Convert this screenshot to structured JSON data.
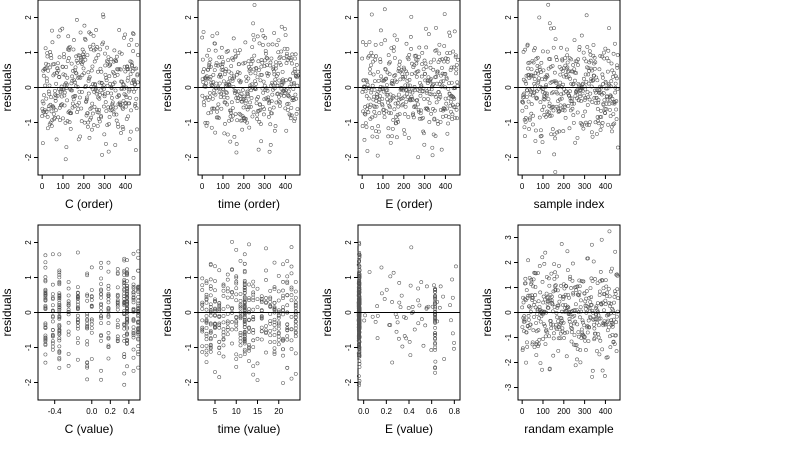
{
  "chart_data": [
    {
      "type": "scatter",
      "xlabel": "C (order)",
      "ylabel": "residuals",
      "xlim": [
        -20,
        470
      ],
      "ylim": [
        -2.5,
        2.5
      ],
      "xticks": [
        {
          "v": 0,
          "t": "0"
        },
        {
          "v": 100,
          "t": "100"
        },
        {
          "v": 200,
          "t": "200"
        },
        {
          "v": 300,
          "t": "300"
        },
        {
          "v": 400,
          "t": "400"
        }
      ],
      "yticks": [
        {
          "v": -2,
          "t": "-2"
        },
        {
          "v": -1,
          "t": "-1"
        },
        {
          "v": 0,
          "t": "0"
        },
        {
          "v": 1,
          "t": "1"
        },
        {
          "v": 2,
          "t": "2"
        }
      ],
      "hline": 0,
      "gen": {
        "n": 420,
        "xkind": "uniform",
        "xmin": 0,
        "xmax": 460,
        "sd": 0.72,
        "seed": 11
      }
    },
    {
      "type": "scatter",
      "xlabel": "time (order)",
      "ylabel": "residuals",
      "xlim": [
        -20,
        470
      ],
      "ylim": [
        -2.5,
        2.5
      ],
      "xticks": [
        {
          "v": 0,
          "t": "0"
        },
        {
          "v": 100,
          "t": "100"
        },
        {
          "v": 200,
          "t": "200"
        },
        {
          "v": 300,
          "t": "300"
        },
        {
          "v": 400,
          "t": "400"
        }
      ],
      "yticks": [
        {
          "v": -2,
          "t": "-2"
        },
        {
          "v": -1,
          "t": "-1"
        },
        {
          "v": 0,
          "t": "0"
        },
        {
          "v": 1,
          "t": "1"
        },
        {
          "v": 2,
          "t": "2"
        }
      ],
      "hline": 0,
      "gen": {
        "n": 420,
        "xkind": "uniform",
        "xmin": 0,
        "xmax": 460,
        "sd": 0.72,
        "seed": 23
      }
    },
    {
      "type": "scatter",
      "xlabel": "E (order)",
      "ylabel": "residuals",
      "xlim": [
        -20,
        470
      ],
      "ylim": [
        -2.5,
        2.5
      ],
      "xticks": [
        {
          "v": 0,
          "t": "0"
        },
        {
          "v": 100,
          "t": "100"
        },
        {
          "v": 200,
          "t": "200"
        },
        {
          "v": 300,
          "t": "300"
        },
        {
          "v": 400,
          "t": "400"
        }
      ],
      "yticks": [
        {
          "v": -2,
          "t": "-2"
        },
        {
          "v": -1,
          "t": "-1"
        },
        {
          "v": 0,
          "t": "0"
        },
        {
          "v": 1,
          "t": "1"
        },
        {
          "v": 2,
          "t": "2"
        }
      ],
      "hline": 0,
      "gen": {
        "n": 420,
        "xkind": "uniform",
        "xmin": 0,
        "xmax": 460,
        "sd": 0.72,
        "seed": 37
      }
    },
    {
      "type": "scatter",
      "xlabel": "sample index",
      "ylabel": "residuals",
      "xlim": [
        -20,
        470
      ],
      "ylim": [
        -2.5,
        2.5
      ],
      "xticks": [
        {
          "v": 0,
          "t": "0"
        },
        {
          "v": 100,
          "t": "100"
        },
        {
          "v": 200,
          "t": "200"
        },
        {
          "v": 300,
          "t": "300"
        },
        {
          "v": 400,
          "t": "400"
        }
      ],
      "yticks": [
        {
          "v": -2,
          "t": "-2"
        },
        {
          "v": -1,
          "t": "-1"
        },
        {
          "v": 0,
          "t": "0"
        },
        {
          "v": 1,
          "t": "1"
        },
        {
          "v": 2,
          "t": "2"
        }
      ],
      "hline": 0,
      "gen": {
        "n": 420,
        "xkind": "uniform",
        "xmin": 0,
        "xmax": 460,
        "sd": 0.72,
        "seed": 41
      }
    },
    {
      "type": "scatter",
      "xlabel": "C (value)",
      "ylabel": "residuals",
      "xlim": [
        -0.58,
        0.52
      ],
      "ylim": [
        -2.5,
        2.5
      ],
      "xticks": [
        {
          "v": -0.4,
          "t": "-0.4"
        },
        {
          "v": 0.0,
          "t": "0.0"
        },
        {
          "v": 0.2,
          "t": "0.2"
        },
        {
          "v": 0.4,
          "t": "0.4"
        }
      ],
      "yticks": [
        {
          "v": -2,
          "t": "-2"
        },
        {
          "v": -1,
          "t": "-1"
        },
        {
          "v": 0,
          "t": "0"
        },
        {
          "v": 1,
          "t": "1"
        },
        {
          "v": 2,
          "t": "2"
        }
      ],
      "hline": 0,
      "gen": {
        "n": 420,
        "xkind": "discrete",
        "levels": [
          -0.5,
          -0.42,
          -0.35,
          -0.25,
          -0.15,
          -0.05,
          0.0,
          0.1,
          0.18,
          0.28,
          0.35,
          0.38,
          0.45,
          0.5
        ],
        "weights": [
          3,
          3,
          4,
          2,
          2,
          2,
          2,
          2,
          2,
          2,
          5,
          6,
          3,
          4
        ],
        "sd": 0.72,
        "seed": 53
      }
    },
    {
      "type": "scatter",
      "xlabel": "time (value)",
      "ylabel": "residuals",
      "xlim": [
        1,
        25
      ],
      "ylim": [
        -2.5,
        2.5
      ],
      "xticks": [
        {
          "v": 5,
          "t": "5"
        },
        {
          "v": 10,
          "t": "10"
        },
        {
          "v": 15,
          "t": "15"
        },
        {
          "v": 20,
          "t": "20"
        }
      ],
      "yticks": [
        {
          "v": -2,
          "t": "-2"
        },
        {
          "v": -1,
          "t": "-1"
        },
        {
          "v": 0,
          "t": "0"
        },
        {
          "v": 1,
          "t": "1"
        },
        {
          "v": 2,
          "t": "2"
        }
      ],
      "hline": 0,
      "gen": {
        "n": 420,
        "xkind": "integers",
        "xmin": 2,
        "xmax": 24,
        "heavy": [
          12
        ],
        "sd": 0.72,
        "seed": 67
      }
    },
    {
      "type": "scatter",
      "xlabel": "E (value)",
      "ylabel": "residuals",
      "xlim": [
        -0.05,
        0.85
      ],
      "ylim": [
        -2.5,
        2.5
      ],
      "xticks": [
        {
          "v": 0.0,
          "t": "0.0"
        },
        {
          "v": 0.2,
          "t": "0.2"
        },
        {
          "v": 0.4,
          "t": "0.4"
        },
        {
          "v": 0.6,
          "t": "0.6"
        },
        {
          "v": 0.8,
          "t": "0.8"
        }
      ],
      "yticks": [
        {
          "v": -2,
          "t": "-2"
        },
        {
          "v": -1,
          "t": "-1"
        },
        {
          "v": 0,
          "t": "0"
        },
        {
          "v": 1,
          "t": "1"
        },
        {
          "v": 2,
          "t": "2"
        }
      ],
      "hline": 0,
      "gen": {
        "n": 420,
        "xkind": "clustered",
        "main": -0.04,
        "mainFrac": 0.72,
        "second": 0.63,
        "secondFrac": 0.1,
        "xmin": 0.0,
        "xmax": 0.82,
        "sd": 0.72,
        "seed": 79
      }
    },
    {
      "type": "scatter",
      "xlabel": "randam example",
      "ylabel": "residuals",
      "xlim": [
        -20,
        470
      ],
      "ylim": [
        -3.5,
        3.5
      ],
      "xticks": [
        {
          "v": 0,
          "t": "0"
        },
        {
          "v": 100,
          "t": "100"
        },
        {
          "v": 200,
          "t": "200"
        },
        {
          "v": 300,
          "t": "300"
        },
        {
          "v": 400,
          "t": "400"
        }
      ],
      "yticks": [
        {
          "v": -3,
          "t": "-3"
        },
        {
          "v": -2,
          "t": "-2"
        },
        {
          "v": -1,
          "t": "-1"
        },
        {
          "v": 0,
          "t": "0"
        },
        {
          "v": 1,
          "t": "1"
        },
        {
          "v": 2,
          "t": "2"
        },
        {
          "v": 3,
          "t": "3"
        }
      ],
      "hline": 0,
      "gen": {
        "n": 420,
        "xkind": "uniform",
        "xmin": 0,
        "xmax": 460,
        "sd": 1.0,
        "seed": 97
      }
    }
  ],
  "style": {
    "point_color": "#555555",
    "axis_color": "#000000",
    "background": "#ffffff"
  }
}
